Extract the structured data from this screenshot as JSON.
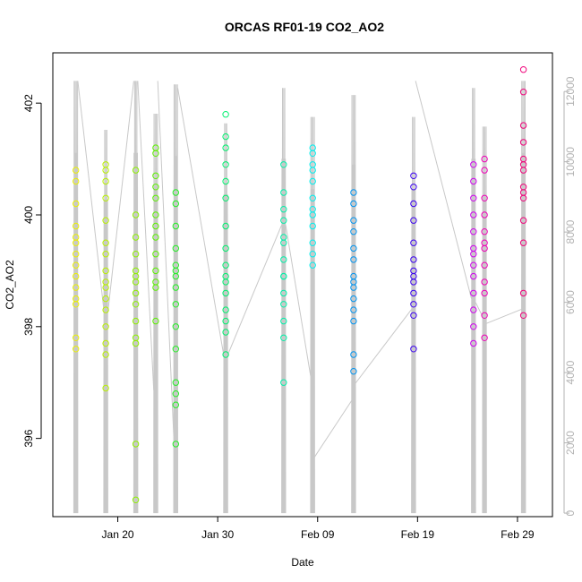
{
  "chart_data": {
    "type": "scatter",
    "title": "ORCAS RF01-19 CO2_AO2",
    "xlabel": "Date",
    "ylabel": "CO2_AO2",
    "x_ticks": [
      "Jan 20",
      "Jan 30",
      "Feb 09",
      "Feb 19",
      "Feb 29"
    ],
    "x_tick_days": [
      20,
      30,
      40,
      50,
      60
    ],
    "xlim_days": [
      13.5,
      63.5
    ],
    "ylim": [
      394.6,
      402.9
    ],
    "y_ticks": [
      396,
      398,
      400,
      402
    ],
    "right_axis": {
      "ylim": [
        -100,
        13100
      ],
      "ticks": [
        0,
        2000,
        4000,
        6000,
        8000,
        10000,
        12000
      ]
    },
    "background_series": {
      "color": "#c8c8c8",
      "flights": [
        {
          "start": 15.6,
          "end": 16.0,
          "max": 12300
        },
        {
          "start": 18.6,
          "end": 19.0,
          "max": 11900
        },
        {
          "start": 21.6,
          "end": 22.0,
          "max": 12300
        },
        {
          "start": 23.6,
          "end": 24.0,
          "max": 12400
        },
        {
          "start": 25.6,
          "end": 26.0,
          "max": 12200
        },
        {
          "start": 30.6,
          "end": 31.0,
          "max": 12100
        },
        {
          "start": 36.4,
          "end": 36.8,
          "max": 12100
        },
        {
          "start": 39.3,
          "end": 39.7,
          "max": 12300
        },
        {
          "start": 43.4,
          "end": 43.8,
          "max": 11900
        },
        {
          "start": 49.4,
          "end": 49.8,
          "max": 12300
        },
        {
          "start": 55.4,
          "end": 55.8,
          "max": 12100
        },
        {
          "start": 56.5,
          "end": 56.9,
          "max": 12000
        },
        {
          "start": 60.4,
          "end": 60.8,
          "max": 12300
        }
      ],
      "ferry_lines": [
        [
          [
            16.0,
            12300
          ],
          [
            18.6,
            5800
          ]
        ],
        [
          [
            19.0,
            5700
          ],
          [
            21.6,
            12300
          ]
        ],
        [
          [
            22.0,
            12300
          ],
          [
            23.6,
            3500
          ]
        ],
        [
          [
            24.0,
            12300
          ],
          [
            25.6,
            2200
          ]
        ],
        [
          [
            26.0,
            12100
          ],
          [
            30.6,
            4500
          ]
        ],
        [
          [
            31.0,
            4500
          ],
          [
            36.4,
            8200
          ]
        ],
        [
          [
            36.8,
            8200
          ],
          [
            39.3,
            3900
          ]
        ],
        [
          [
            39.7,
            1600
          ],
          [
            43.4,
            3200
          ]
        ],
        [
          [
            43.8,
            3700
          ],
          [
            49.4,
            5800
          ]
        ],
        [
          [
            49.8,
            12300
          ],
          [
            55.4,
            6100
          ]
        ],
        [
          [
            55.8,
            6000
          ],
          [
            56.5,
            5600
          ]
        ],
        [
          [
            56.9,
            5400
          ],
          [
            60.4,
            5800
          ]
        ]
      ]
    },
    "series": [
      {
        "x": 15.8,
        "color": "#eaf000",
        "values": [
          400.8,
          400.6,
          400.2,
          399.8,
          399.5,
          399.3,
          399.1,
          398.9,
          398.7,
          398.5,
          397.8,
          397.6,
          399.6,
          398.4
        ]
      },
      {
        "x": 18.8,
        "color": "#b8f000",
        "values": [
          400.9,
          400.6,
          400.3,
          399.9,
          399.5,
          399.3,
          399.0,
          398.8,
          398.5,
          398.3,
          398.0,
          397.7,
          397.5,
          396.9,
          400.8,
          398.7
        ]
      },
      {
        "x": 21.8,
        "color": "#8ef000",
        "values": [
          400.8,
          400.0,
          399.6,
          399.3,
          399.0,
          398.8,
          398.6,
          398.4,
          398.1,
          397.8,
          397.7,
          395.9,
          394.9,
          398.9
        ]
      },
      {
        "x": 23.8,
        "color": "#5cf000",
        "values": [
          401.2,
          401.1,
          400.7,
          400.5,
          400.3,
          400.0,
          399.8,
          399.6,
          399.3,
          399.0,
          398.8,
          398.1,
          398.7
        ]
      },
      {
        "x": 25.8,
        "color": "#24f024",
        "values": [
          400.4,
          400.2,
          399.8,
          399.4,
          399.1,
          398.9,
          398.7,
          398.4,
          398.0,
          397.6,
          397.0,
          396.8,
          396.6,
          395.9,
          399.0
        ]
      },
      {
        "x": 30.8,
        "color": "#00f06e",
        "values": [
          401.8,
          401.4,
          401.2,
          400.9,
          400.6,
          400.3,
          399.8,
          399.4,
          399.1,
          398.8,
          398.6,
          398.3,
          398.1,
          397.9,
          397.5,
          398.9
        ]
      },
      {
        "x": 36.6,
        "color": "#00f0a8",
        "values": [
          400.9,
          400.4,
          400.1,
          399.9,
          399.6,
          399.2,
          398.9,
          398.6,
          398.4,
          398.1,
          397.8,
          397.0,
          399.5,
          398.9
        ]
      },
      {
        "x": 39.5,
        "color": "#00f0f0",
        "values": [
          401.2,
          401.1,
          400.8,
          400.6,
          400.3,
          400.1,
          399.8,
          399.5,
          399.3,
          399.1,
          400.9,
          400.0
        ]
      },
      {
        "x": 43.6,
        "color": "#0094f0",
        "values": [
          400.4,
          400.2,
          399.9,
          399.7,
          399.4,
          399.2,
          398.9,
          398.7,
          398.5,
          398.3,
          398.1,
          397.5,
          397.2,
          398.8
        ]
      },
      {
        "x": 49.6,
        "color": "#3a00f0",
        "values": [
          400.7,
          400.5,
          400.2,
          399.9,
          399.5,
          399.2,
          399.0,
          398.8,
          398.6,
          398.4,
          398.2,
          397.6,
          398.9
        ]
      },
      {
        "x": 55.6,
        "color": "#d000f0",
        "values": [
          400.9,
          400.6,
          400.3,
          400.0,
          399.7,
          399.4,
          399.1,
          398.9,
          398.6,
          398.3,
          398.0,
          397.7,
          399.3
        ]
      },
      {
        "x": 56.7,
        "color": "#f000b8",
        "values": [
          401.0,
          400.8,
          400.3,
          400.0,
          399.7,
          399.5,
          399.1,
          398.8,
          398.6,
          398.2,
          397.8,
          399.4
        ]
      },
      {
        "x": 60.6,
        "color": "#f0007a",
        "values": [
          402.6,
          402.2,
          401.6,
          401.3,
          401.0,
          400.8,
          400.5,
          400.3,
          399.9,
          399.5,
          398.6,
          398.2,
          400.9,
          400.4
        ]
      }
    ]
  }
}
